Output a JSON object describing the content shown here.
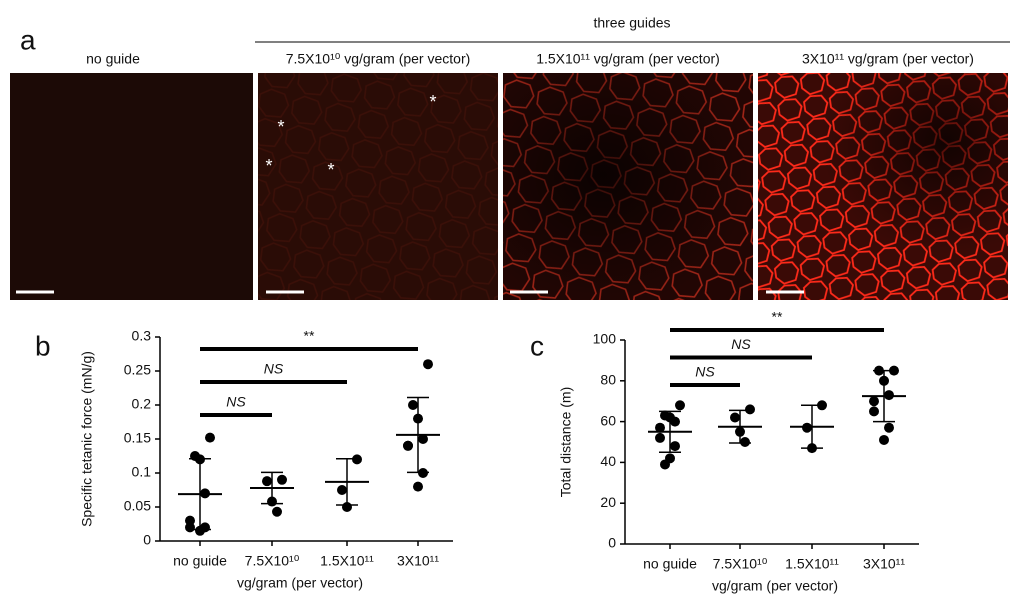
{
  "panel_a": {
    "label": "a",
    "group_label": "three guides",
    "images": [
      {
        "title": "no guide"
      },
      {
        "title": "7.5X10¹⁰ vg/gram (per vector)"
      },
      {
        "title": "1.5X10¹¹ vg/gram (per vector)"
      },
      {
        "title": "3X10¹¹ vg/gram (per vector)"
      }
    ],
    "annotations": [
      "*",
      "*",
      "*",
      "*"
    ]
  },
  "chart_data": [
    {
      "type": "dotplot",
      "panel_label": "b",
      "ylabel": "Specific tetanic force (mN/g)",
      "xlabel": "vg/gram (per vector)",
      "categories": [
        "no guide",
        "7.5X10¹⁰",
        "1.5X10¹¹",
        "3X10¹¹"
      ],
      "points": [
        [
          0.152,
          0.125,
          0.12,
          0.07,
          0.03,
          0.02,
          0.02,
          0.015
        ],
        [
          0.09,
          0.088,
          0.058,
          0.043
        ],
        [
          0.12,
          0.075,
          0.05
        ],
        [
          0.26,
          0.2,
          0.18,
          0.15,
          0.14,
          0.14,
          0.1,
          0.08
        ]
      ],
      "means": [
        0.069,
        0.078,
        0.087,
        0.156
      ],
      "sds": [
        0.052,
        0.023,
        0.034,
        0.055
      ],
      "comparisons": [
        {
          "label": "NS",
          "groups": [
            0,
            1
          ]
        },
        {
          "label": "NS",
          "groups": [
            0,
            2
          ]
        },
        {
          "label": "**",
          "groups": [
            0,
            3
          ]
        }
      ],
      "ylim": [
        0,
        0.3
      ],
      "yticks": [
        0,
        0.05,
        0.1,
        0.15,
        0.2,
        0.25,
        0.3
      ],
      "color": "#000000"
    },
    {
      "type": "dotplot",
      "panel_label": "c",
      "ylabel": "Total distance (m)",
      "xlabel": "vg/gram (per vector)",
      "categories": [
        "no guide",
        "7.5X10¹⁰",
        "1.5X10¹¹",
        "3X10¹¹"
      ],
      "points": [
        [
          68,
          63,
          62,
          60,
          57,
          52,
          48,
          42,
          39
        ],
        [
          66,
          62,
          55,
          50
        ],
        [
          68,
          57,
          47
        ],
        [
          85,
          85,
          80,
          73,
          70,
          65,
          57,
          51
        ]
      ],
      "means": [
        55,
        57.5,
        57.5,
        72.5
      ],
      "sds": [
        10,
        8,
        10.5,
        12.5
      ],
      "comparisons": [
        {
          "label": "NS",
          "groups": [
            0,
            1
          ]
        },
        {
          "label": "NS",
          "groups": [
            0,
            2
          ]
        },
        {
          "label": "**",
          "groups": [
            0,
            3
          ]
        }
      ],
      "ylim": [
        0,
        100
      ],
      "yticks": [
        0,
        20,
        40,
        60,
        80,
        100
      ],
      "color": "#000000"
    }
  ]
}
